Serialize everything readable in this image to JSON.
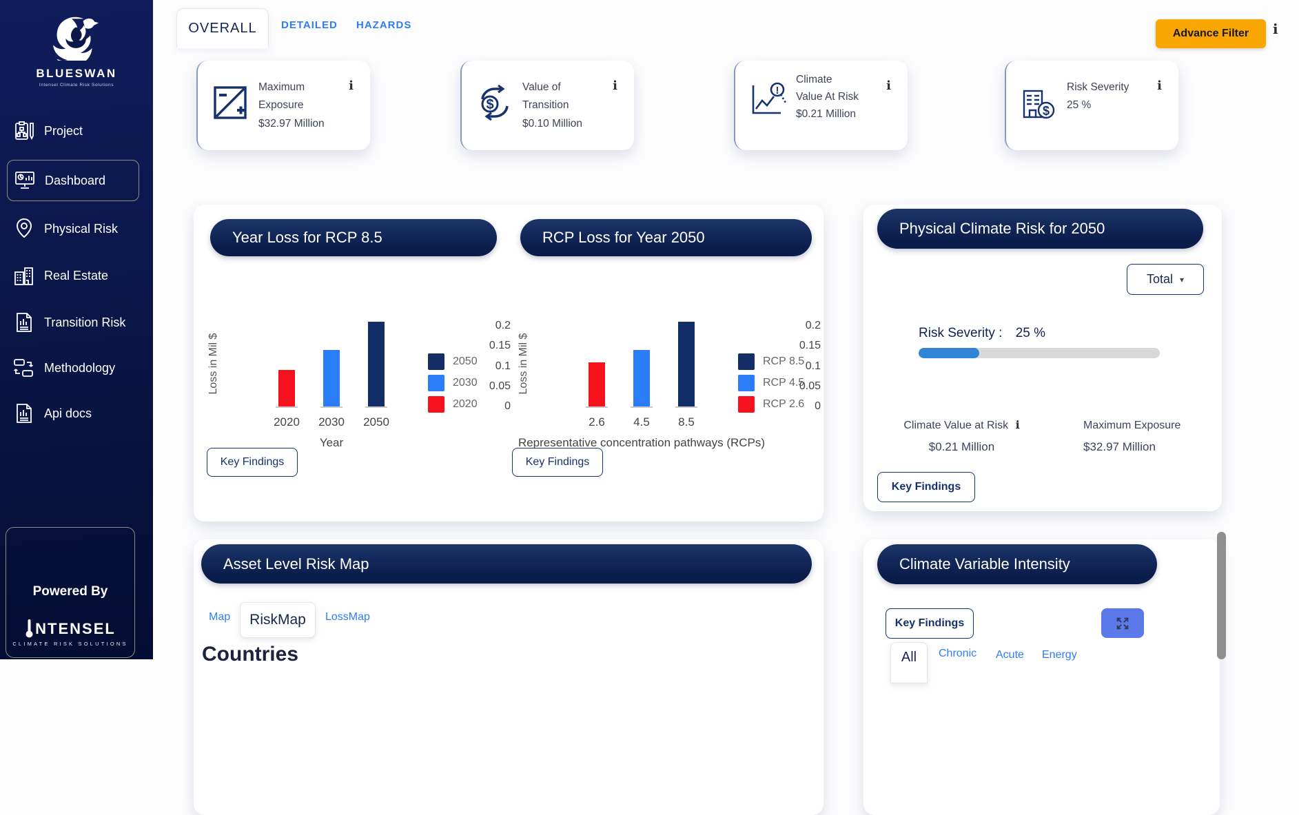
{
  "colors": {
    "accent_orange": "#F9A602",
    "pill_navy": "#0d1f4e",
    "link_blue": "#2E7CF6",
    "progress_blue": "#2F86D6",
    "expand_button_blue": "#5B79E8",
    "scrollbar_gray": "#8F8F8F",
    "bar_red": "#F6121D",
    "bar_blue": "#2A7CF7",
    "bar_navy": "#132D66"
  },
  "sidebar": {
    "brand": "BLUESWAN",
    "tagline": "Intensel Climate Risk Solutions",
    "items": [
      {
        "label": "Project",
        "icon": "project-icon",
        "active": false
      },
      {
        "label": "Dashboard",
        "icon": "dashboard-icon",
        "active": true
      },
      {
        "label": "Physical Risk",
        "icon": "physical-risk-icon",
        "active": false
      },
      {
        "label": "Real Estate",
        "icon": "real-estate-icon",
        "active": false
      },
      {
        "label": "Transition Risk",
        "icon": "transition-risk-icon",
        "active": false
      },
      {
        "label": "Methodology",
        "icon": "methodology-icon",
        "active": false
      },
      {
        "label": "Api docs",
        "icon": "api-docs-icon",
        "active": false
      }
    ],
    "powered_by": {
      "label": "Powered By",
      "brand": "NTENSEL",
      "tagline": "CLIMATE RISK SOLUTIONS"
    }
  },
  "header": {
    "tabs": [
      {
        "label": "OVERALL",
        "active": true
      },
      {
        "label": "DETAILED",
        "active": false
      },
      {
        "label": "HAZARDS",
        "active": false
      }
    ],
    "advance_filter_label": "Advance Filter",
    "info_icon": "i"
  },
  "kpi_cards": [
    {
      "title": "Maximum Exposure",
      "value": "$32.97 Million",
      "icon": "exposure-icon",
      "info_icon": "i"
    },
    {
      "title": "Value of Transition",
      "value": "$0.10 Million",
      "icon": "transition-value-icon",
      "info_icon": "i"
    },
    {
      "title": "Climate Value At Risk",
      "value": "$0.21 Million",
      "icon": "climate-var-icon",
      "info_icon": "i"
    },
    {
      "title": "Risk Severity",
      "value": "25 %",
      "icon": "risk-severity-icon",
      "info_icon": "i"
    }
  ],
  "chart_data": [
    {
      "type": "bar",
      "title": "Year Loss for RCP 8.5",
      "xlabel": "Year",
      "ylabel": "Loss in Mil $",
      "categories": [
        "2020",
        "2030",
        "2050"
      ],
      "values": [
        0.09,
        0.14,
        0.21
      ],
      "bar_colors": [
        "#F6121D",
        "#2A7CF7",
        "#132D66"
      ],
      "yticks": [
        "0",
        "0.05",
        "0.1",
        "0.15",
        "0.2"
      ],
      "ylim": [
        0,
        0.225
      ],
      "grid": false,
      "legend_position": "right",
      "legend": [
        {
          "label": "2050",
          "color": "#132D66"
        },
        {
          "label": "2030",
          "color": "#2A7CF7"
        },
        {
          "label": "2020",
          "color": "#F6121D"
        }
      ],
      "button_label": "Key Findings"
    },
    {
      "type": "bar",
      "title": "RCP Loss for Year 2050",
      "xlabel": "Representative concentration pathways (RCPs)",
      "ylabel": "Loss in Mil $",
      "categories": [
        "2.6",
        "4.5",
        "8.5"
      ],
      "values": [
        0.11,
        0.14,
        0.21
      ],
      "bar_colors": [
        "#F6121D",
        "#2A7CF7",
        "#132D66"
      ],
      "yticks": [
        "0",
        "0.05",
        "0.1",
        "0.15",
        "0.2"
      ],
      "ylim": [
        0,
        0.225
      ],
      "grid": false,
      "legend_position": "right",
      "legend": [
        {
          "label": "RCP 8.5",
          "color": "#132D66"
        },
        {
          "label": "RCP 4.5",
          "color": "#2A7CF7"
        },
        {
          "label": "RCP 2.6",
          "color": "#F6121D"
        }
      ],
      "button_label": "Key Findings"
    }
  ],
  "physical_risk_panel": {
    "title": "Physical Climate Risk for 2050",
    "filter_value": "Total",
    "caret_icon": "▾",
    "risk_severity_label": "Risk Severity :",
    "risk_severity_value": "25 %",
    "risk_severity_percent": 25,
    "stats": [
      {
        "label": "Climate Value at Risk",
        "value": "$0.21 Million",
        "info_icon": "i"
      },
      {
        "label": "Maximum Exposure",
        "value": "$32.97 Million"
      }
    ],
    "key_findings_label": "Key Findings"
  },
  "asset_map_panel": {
    "title": "Asset Level Risk Map",
    "tabs": [
      {
        "label": "Map",
        "active": false
      },
      {
        "label": "RiskMap",
        "active": true
      },
      {
        "label": "LossMap",
        "active": false
      }
    ],
    "heading": "Countries"
  },
  "climate_variable_panel": {
    "title": "Climate Variable Intensity",
    "key_findings_label": "Key Findings",
    "tabs": [
      {
        "label": "All",
        "active": true
      },
      {
        "label": "Chronic",
        "active": false
      },
      {
        "label": "Acute",
        "active": false
      },
      {
        "label": "Energy",
        "active": false
      }
    ]
  }
}
